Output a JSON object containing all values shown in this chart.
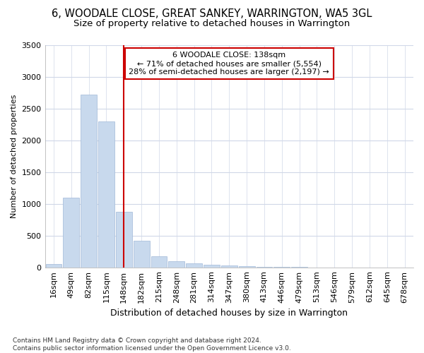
{
  "title1": "6, WOODALE CLOSE, GREAT SANKEY, WARRINGTON, WA5 3GL",
  "title2": "Size of property relative to detached houses in Warrington",
  "xlabel": "Distribution of detached houses by size in Warrington",
  "ylabel": "Number of detached properties",
  "bar_labels": [
    "16sqm",
    "49sqm",
    "82sqm",
    "115sqm",
    "148sqm",
    "182sqm",
    "215sqm",
    "248sqm",
    "281sqm",
    "314sqm",
    "347sqm",
    "380sqm",
    "413sqm",
    "446sqm",
    "479sqm",
    "513sqm",
    "546sqm",
    "579sqm",
    "612sqm",
    "645sqm",
    "678sqm"
  ],
  "bar_values": [
    50,
    1100,
    2720,
    2300,
    870,
    420,
    175,
    95,
    60,
    40,
    25,
    15,
    10,
    5,
    3,
    2,
    1,
    1,
    1,
    1,
    0
  ],
  "bar_color": "#c8d9ed",
  "bar_edgecolor": "#a0b8d8",
  "vline_x_index": 4,
  "vline_color": "#cc0000",
  "annotation_title": "6 WOODALE CLOSE: 138sqm",
  "annotation_line1": "← 71% of detached houses are smaller (5,554)",
  "annotation_line2": "28% of semi-detached houses are larger (2,197) →",
  "annotation_box_color": "#ffffff",
  "annotation_box_edgecolor": "#cc0000",
  "ylim": [
    0,
    3500
  ],
  "yticks": [
    0,
    500,
    1000,
    1500,
    2000,
    2500,
    3000,
    3500
  ],
  "footer": "Contains HM Land Registry data © Crown copyright and database right 2024.\nContains public sector information licensed under the Open Government Licence v3.0.",
  "bg_color": "#ffffff",
  "plot_bg_color": "#ffffff",
  "grid_color": "#d0d8e8",
  "title1_fontsize": 10.5,
  "title2_fontsize": 9.5,
  "xlabel_fontsize": 9,
  "ylabel_fontsize": 8,
  "tick_fontsize": 8,
  "annotation_fontsize": 8,
  "footer_fontsize": 6.5
}
